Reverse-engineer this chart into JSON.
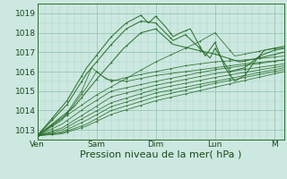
{
  "bg_color": "#cce8e0",
  "grid_color_major": "#8dbfb0",
  "grid_color_minor": "#a8d4ca",
  "line_color": "#2a6e2a",
  "xlabel": "Pression niveau de la mer( hPa )",
  "xlabel_fontsize": 8,
  "tick_fontsize": 6.5,
  "ylim": [
    1012.5,
    1019.5
  ],
  "yticks": [
    1013,
    1014,
    1015,
    1016,
    1017,
    1018,
    1019
  ],
  "x_day_labels": [
    "Ven",
    "Sam",
    "Dim",
    "Lun",
    "M"
  ],
  "x_day_positions": [
    0,
    24,
    48,
    72,
    96
  ],
  "num_hours": 100
}
